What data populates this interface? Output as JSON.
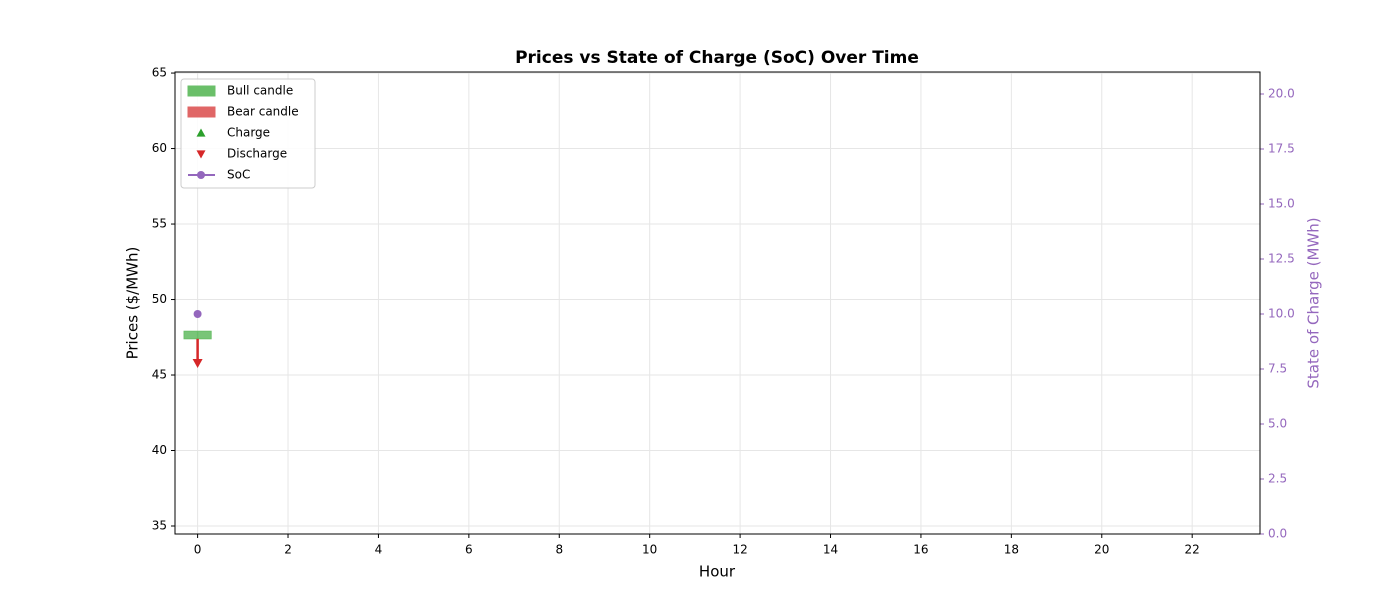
{
  "chart_data": {
    "type": "candlestick",
    "title": "Prices vs State of Charge (SoC) Over Time",
    "xlabel": "Hour",
    "ylabel": "Prices ($/MWh)",
    "y2label": "State of Charge (MWh)",
    "x": [
      0
    ],
    "open": [
      47.4
    ],
    "close": [
      47.9
    ],
    "high": [
      47.9
    ],
    "low": [
      47.4
    ],
    "candle_legend": [
      {
        "name": "Bull candle",
        "color": "#6abf69"
      },
      {
        "name": "Bear candle",
        "color": "#e06666"
      }
    ],
    "series": [
      {
        "name": "Charge",
        "color": "#2ca02c",
        "marker": "up",
        "x": [],
        "values": []
      },
      {
        "name": "Discharge",
        "color": "#d62728",
        "marker": "down",
        "x": [
          0
        ],
        "values": [
          45.8
        ]
      },
      {
        "name": "SoC",
        "color": "#9467bd",
        "marker": "line",
        "axis": "y2",
        "x": [
          0
        ],
        "values": [
          10
        ]
      }
    ],
    "xlim": [
      -0.5,
      23.5
    ],
    "ylim": [
      34.47,
      65.07
    ],
    "y2lim": [
      0,
      21
    ],
    "xticks": [
      0,
      2,
      4,
      6,
      8,
      10,
      12,
      14,
      16,
      18,
      20,
      22
    ],
    "yticks": [
      35,
      40,
      45,
      50,
      55,
      60,
      65
    ],
    "y2ticks": [
      {
        "value": 0,
        "label": "0.0"
      },
      2.5,
      {
        "value": 5,
        "label": "5.0"
      },
      7.5,
      {
        "value": 10,
        "label": "10.0"
      },
      12.5,
      {
        "value": 15,
        "label": "15.0"
      },
      17.5,
      {
        "value": 20,
        "label": "20.0"
      }
    ],
    "grid": true,
    "legend": "upper left"
  }
}
